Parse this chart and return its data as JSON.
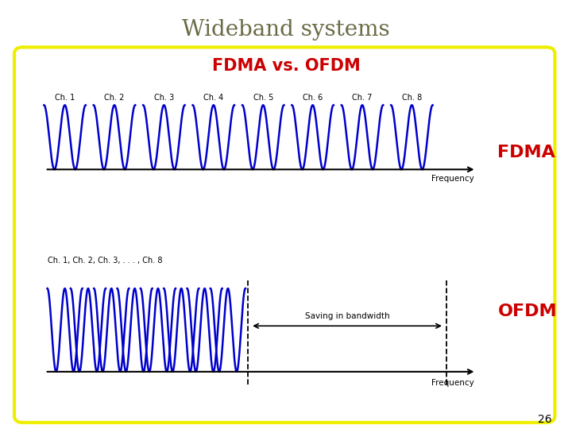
{
  "title": "Wideband systems",
  "subtitle": "FDMA vs. OFDM",
  "title_color": "#6b6b47",
  "subtitle_color": "#cc0000",
  "fdma_label": "FDMA",
  "ofdm_label": "OFDM",
  "fdma_color": "#cc0000",
  "ofdm_color": "#cc0000",
  "curve_color": "#0000cc",
  "background": "#ffffff",
  "box_edge_color": "#eeee00",
  "freq_label": "Frequency",
  "saving_label": "Saving in bandwidth",
  "ch_labels_fdma": [
    "Ch. 1",
    "Ch. 2",
    "Ch. 3",
    "Ch. 4",
    "Ch. 5",
    "Ch. 6",
    "Ch. 7",
    "Ch. 8"
  ],
  "ch_label_ofdm": "Ch. 1, Ch. 2, Ch. 3, . . . , Ch. 8",
  "n_channels_fdma": 8,
  "n_channels_ofdm": 8,
  "page_number": "26",
  "title_fontsize": 20,
  "subtitle_fontsize": 15,
  "fdma_label_fontsize": 16,
  "ofdm_label_fontsize": 16
}
